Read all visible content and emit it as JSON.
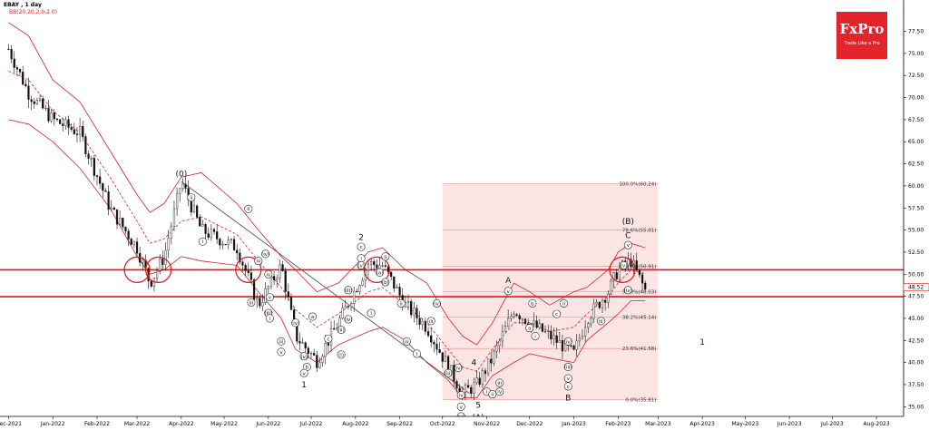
{
  "header": {
    "symbol": "EBAY , 1 day",
    "indicator": "BB(20,20,2.0,2.0)"
  },
  "logo": {
    "brand": "FxPro",
    "tagline": "Trade Like a Pro"
  },
  "colors": {
    "background": "#ffffff",
    "candle": "#111111",
    "bollinger": "#e02020",
    "level_line": "#e01515",
    "fib_zone": "#fbe4e4",
    "fib_line": "#e89a9a",
    "trendline": "#444444",
    "price_tag": "#e01515"
  },
  "chart_data": {
    "type": "line",
    "title": "",
    "xlabel": "",
    "ylabel": "",
    "x_axis_labels": [
      "Dec-2021",
      "Jan-2022",
      "Feb-2022",
      "Mar-2022",
      "Apr-2022",
      "May-2022",
      "Jun-2022",
      "Jul-2022",
      "Aug-2022",
      "Sep-2022",
      "Oct-2022",
      "Nov-2022",
      "Dec-2022",
      "Jan-2023",
      "Feb-2023",
      "Mar-2023",
      "Apr-2023",
      "May-2023",
      "Jun-2023",
      "Jul-2023",
      "Aug-2023"
    ],
    "y_axis_labels": [
      "77.50",
      "75.00",
      "72.50",
      "70.00",
      "67.50",
      "65.00",
      "62.50",
      "60.00",
      "57.50",
      "55.00",
      "52.50",
      "50.00",
      "47.50",
      "45.00",
      "42.50",
      "40.00",
      "37.50",
      "35.00"
    ],
    "ylim": [
      33.9,
      79.2
    ],
    "current_price": "48.52",
    "price_series": {
      "name": "EBAY",
      "x": [
        "2021-12",
        "2021-12-15",
        "2022-01",
        "2022-01-20",
        "2022-02-10",
        "2022-03-01",
        "2022-03-10",
        "2022-03-20",
        "2022-04-01",
        "2022-04-15",
        "2022-05-10",
        "2022-05-25",
        "2022-06-10",
        "2022-06-20",
        "2022-07-05",
        "2022-07-20",
        "2022-08-10",
        "2022-08-20",
        "2022-09-05",
        "2022-09-20",
        "2022-10-05",
        "2022-10-15",
        "2022-10-25",
        "2022-11-05",
        "2022-11-20",
        "2022-12-01",
        "2022-12-15",
        "2023-01-01",
        "2023-01-10",
        "2023-01-25",
        "2023-02-01",
        "2023-02-10",
        "2023-02-20"
      ],
      "values": [
        75.5,
        70.5,
        67.5,
        66.0,
        57.5,
        53.0,
        49.0,
        52.0,
        60.5,
        55.0,
        53.0,
        46.5,
        51.0,
        43.0,
        40.2,
        44.5,
        51.2,
        51.0,
        46.5,
        44.0,
        39.5,
        36.5,
        37.5,
        40.5,
        46.0,
        44.5,
        43.0,
        41.0,
        45.0,
        48.0,
        50.5,
        51.5,
        48.2
      ]
    },
    "bollinger_bands": {
      "upper": [
        78.5,
        77.0,
        72.0,
        69.5,
        64.0,
        59.0,
        57.0,
        58.0,
        61.0,
        61.5,
        58.0,
        55.0,
        52.0,
        50.5,
        48.0,
        49.0,
        52.5,
        53.0,
        50.5,
        49.0,
        45.0,
        43.0,
        42.0,
        44.5,
        49.0,
        48.0,
        46.5,
        48.0,
        48.5,
        50.5,
        52.5,
        53.5,
        53.0
      ],
      "middle": [
        73.0,
        72.0,
        68.5,
        66.0,
        61.0,
        56.0,
        53.5,
        54.0,
        56.0,
        56.5,
        54.5,
        51.5,
        48.5,
        46.0,
        44.0,
        45.5,
        48.0,
        48.5,
        46.5,
        44.5,
        41.5,
        39.5,
        39.0,
        41.5,
        44.5,
        44.5,
        43.5,
        44.0,
        45.5,
        47.5,
        49.0,
        50.5,
        50.0
      ],
      "lower": [
        67.5,
        67.0,
        65.0,
        62.0,
        57.5,
        52.0,
        50.0,
        50.5,
        52.0,
        51.5,
        51.0,
        48.0,
        45.0,
        41.5,
        40.0,
        42.0,
        43.5,
        44.0,
        42.5,
        40.0,
        38.0,
        36.0,
        36.0,
        38.5,
        40.0,
        41.0,
        40.5,
        40.0,
        42.5,
        44.5,
        45.5,
        47.0,
        47.0
      ]
    },
    "horizontal_levels": [
      50.5,
      47.45
    ],
    "fibonacci": {
      "zone_start": "2022-10-01",
      "zone_end": "2023-03-01",
      "levels": [
        {
          "label": "100.0%(60.24)",
          "price": 60.24
        },
        {
          "label": "78.6%(55.01)",
          "price": 55.01
        },
        {
          "label": "61.8%(50.91)",
          "price": 50.91
        },
        {
          "label": "50.0%(48.03)",
          "price": 48.03
        },
        {
          "label": "38.2%(45.14)",
          "price": 45.14
        },
        {
          "label": "23.6%(41.58)",
          "price": 41.58
        },
        {
          "label": "0.0%(35.81)",
          "price": 35.81
        }
      ]
    },
    "trendline": {
      "from": [
        "2022-04-01",
        60.5
      ],
      "to": [
        "2022-10-20",
        36.5
      ]
    },
    "circles": [
      {
        "x": "2022-03-01",
        "price": 50.5
      },
      {
        "x": "2022-03-16",
        "price": 50.5
      },
      {
        "x": "2022-05-18",
        "price": 50.5
      },
      {
        "x": "2022-08-16",
        "price": 50.5
      },
      {
        "x": "2023-02-04",
        "price": 50.5
      }
    ],
    "wave_labels": [
      {
        "text": "(0)",
        "x": "2022-04-01",
        "price": 61.4,
        "boxed": false
      },
      {
        "text": "i",
        "x": "2022-04-16",
        "price": 53.7,
        "boxed": true
      },
      {
        "text": "ii",
        "x": "2022-05-18",
        "price": 57.4,
        "boxed": true
      },
      {
        "text": "ii",
        "x": "2022-04-08",
        "price": 58.7,
        "boxed": true
      },
      {
        "text": "iii",
        "x": "2022-05-20",
        "price": 46.8,
        "boxed": true
      },
      {
        "text": "iv",
        "x": "2022-05-25",
        "price": 51.5,
        "boxed": true
      },
      {
        "text": "(iv)",
        "x": "2022-05-30",
        "price": 52.3,
        "boxed": true
      },
      {
        "text": "(iii)",
        "x": "2022-06-01",
        "price": 45.6,
        "boxed": true
      },
      {
        "text": "iv",
        "x": "2022-06-01",
        "price": 50.0,
        "boxed": true
      },
      {
        "text": "v",
        "x": "2022-06-02",
        "price": 47.4,
        "boxed": true
      },
      {
        "text": "i",
        "x": "2022-06-02",
        "price": 45.0,
        "boxed": true
      },
      {
        "text": "iii",
        "x": "2022-06-10",
        "price": 42.4,
        "boxed": true
      },
      {
        "text": "v",
        "x": "2022-06-10",
        "price": 41.2,
        "boxed": true
      },
      {
        "text": "(iv)",
        "x": "2022-06-20",
        "price": 44.5,
        "boxed": true
      },
      {
        "text": "a",
        "x": "2022-07-02",
        "price": 45.2,
        "boxed": true
      },
      {
        "text": "b",
        "x": "2022-06-28",
        "price": 39.5,
        "boxed": true
      },
      {
        "text": "(v)",
        "x": "2022-06-26",
        "price": 40.7,
        "boxed": true
      },
      {
        "text": "v",
        "x": "2022-06-26",
        "price": 38.8,
        "boxed": true
      },
      {
        "text": "1",
        "x": "2022-06-26",
        "price": 37.5,
        "boxed": false
      },
      {
        "text": "c",
        "x": "2022-07-13",
        "price": 42.7,
        "boxed": true
      },
      {
        "text": "(i)",
        "x": "2022-07-22",
        "price": 40.9,
        "boxed": true
      },
      {
        "text": "(ii)",
        "x": "2022-07-22",
        "price": 43.7,
        "boxed": true
      },
      {
        "text": "(iii)",
        "x": "2022-07-27",
        "price": 48.2,
        "boxed": true
      },
      {
        "text": "(iv)",
        "x": "2022-07-27",
        "price": 44.9,
        "boxed": true
      },
      {
        "text": "i",
        "x": "2022-08-05",
        "price": 51.8,
        "boxed": true
      },
      {
        "text": "2",
        "x": "2022-08-05",
        "price": 54.2,
        "boxed": false
      },
      {
        "text": "c",
        "x": "2022-08-05",
        "price": 53.1,
        "boxed": true
      },
      {
        "text": "(v)",
        "x": "2022-08-05",
        "price": 51.0,
        "boxed": true
      },
      {
        "text": "ii",
        "x": "2022-08-22",
        "price": 52.0,
        "boxed": true
      },
      {
        "text": "(a)",
        "x": "2022-08-18",
        "price": 50.2,
        "boxed": true
      },
      {
        "text": "(b)",
        "x": "2022-08-22",
        "price": 49.1,
        "boxed": true
      },
      {
        "text": "i",
        "x": "2022-08-12",
        "price": 45.6,
        "boxed": true
      },
      {
        "text": "ii",
        "x": "2022-09-02",
        "price": 46.7,
        "boxed": true
      },
      {
        "text": "iii",
        "x": "2022-09-06",
        "price": 42.4,
        "boxed": true
      },
      {
        "text": "i",
        "x": "2022-09-13",
        "price": 41.0,
        "boxed": true
      },
      {
        "text": "iii",
        "x": "2022-09-23",
        "price": 44.7,
        "boxed": true
      },
      {
        "text": "(iv)",
        "x": "2022-09-27",
        "price": 46.7,
        "boxed": true
      },
      {
        "text": "(iii)",
        "x": "2022-10-05",
        "price": 38.8,
        "boxed": true
      },
      {
        "text": "(iv)",
        "x": "2022-10-12",
        "price": 39.4,
        "boxed": true
      },
      {
        "text": "4",
        "x": "2022-10-23",
        "price": 40.0,
        "boxed": false
      },
      {
        "text": "iv",
        "x": "2022-10-14",
        "price": 36.3,
        "boxed": true
      },
      {
        "text": "v",
        "x": "2022-10-14",
        "price": 35.0,
        "boxed": true
      },
      {
        "text": "(v)",
        "x": "2022-10-14",
        "price": 33.9,
        "boxed": true
      },
      {
        "text": "5",
        "x": "2022-10-26",
        "price": 35.2,
        "boxed": false
      },
      {
        "text": "(A)",
        "x": "2022-10-26",
        "price": 33.8,
        "boxed": false
      },
      {
        "text": "i",
        "x": "2022-11-01",
        "price": 36.7,
        "boxed": true
      },
      {
        "text": "ii",
        "x": "2022-11-05",
        "price": 36.4,
        "boxed": true
      },
      {
        "text": "iii",
        "x": "2022-11-10",
        "price": 37.7,
        "boxed": true
      },
      {
        "text": "iv",
        "x": "2022-11-10",
        "price": 36.7,
        "boxed": true
      },
      {
        "text": "A",
        "x": "2022-11-16",
        "price": 49.3,
        "boxed": false
      },
      {
        "text": "v",
        "x": "2022-11-16",
        "price": 48.1,
        "boxed": true
      },
      {
        "text": "b",
        "x": "2022-12-03",
        "price": 46.7,
        "boxed": true
      },
      {
        "text": "a",
        "x": "2022-12-01",
        "price": 43.9,
        "boxed": true
      },
      {
        "text": "i",
        "x": "2022-12-05",
        "price": 43.0,
        "boxed": true
      },
      {
        "text": "c",
        "x": "2022-12-20",
        "price": 45.5,
        "boxed": true
      },
      {
        "text": "ii",
        "x": "2022-12-25",
        "price": 46.7,
        "boxed": true
      },
      {
        "text": "(iv)",
        "x": "2022-12-28",
        "price": 42.4,
        "boxed": true
      },
      {
        "text": "(iii)",
        "x": "2022-12-28",
        "price": 39.5,
        "boxed": true
      },
      {
        "text": "v",
        "x": "2022-12-28",
        "price": 38.2,
        "boxed": true
      },
      {
        "text": "c",
        "x": "2022-12-28",
        "price": 37.3,
        "boxed": true
      },
      {
        "text": "B",
        "x": "2022-12-28",
        "price": 36.0,
        "boxed": false
      },
      {
        "text": "iii",
        "x": "2023-01-20",
        "price": 44.7,
        "boxed": true
      },
      {
        "text": "(iv)",
        "x": "2023-02-08",
        "price": 48.2,
        "boxed": true
      },
      {
        "text": "(v)",
        "x": "2023-02-05",
        "price": 51.0,
        "boxed": true
      },
      {
        "text": "(B)",
        "x": "2023-02-08",
        "price": 56.0,
        "boxed": false
      },
      {
        "text": "C",
        "x": "2023-02-08",
        "price": 54.4,
        "boxed": false
      },
      {
        "text": "v",
        "x": "2023-02-08",
        "price": 53.3,
        "boxed": true
      },
      {
        "text": "1",
        "x": "2023-04-01",
        "price": 42.3,
        "boxed": false
      }
    ]
  }
}
